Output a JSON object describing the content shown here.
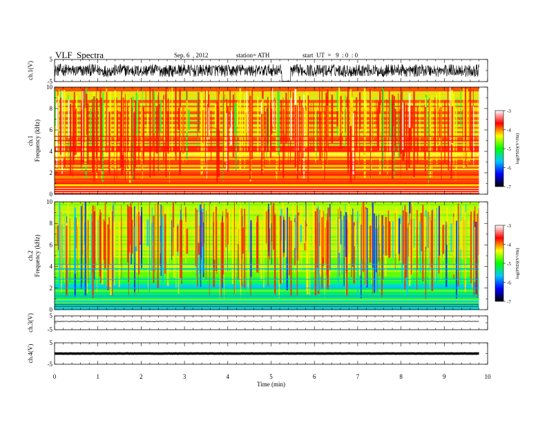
{
  "header": {
    "title": "VLF  Spectra",
    "date": "Sep. 6  , 2012",
    "station": "station= ATH",
    "start": "start  UT  =   9  : 0  : 0"
  },
  "colors": {
    "spectrum": [
      "#000000",
      "#0000ff",
      "#00c8ff",
      "#00ff00",
      "#ffff00",
      "#ff0000",
      "#ffffff"
    ]
  },
  "chart_data": [
    {
      "type": "line",
      "name": "ch1-waveform",
      "ylabel": "ch.1(V)",
      "ylim": [
        -5,
        5
      ],
      "yticks": [
        "5",
        "-5"
      ],
      "xlim": [
        0,
        10
      ],
      "x_min": [
        0,
        9.8
      ],
      "values_min": [
        -3.5,
        3.0
      ],
      "dropout": {
        "x": [
          5.25,
          5.45
        ],
        "value": -5
      }
    },
    {
      "type": "heatmap",
      "name": "ch1-spectrogram",
      "ylabel": "ch.1\nFrequency  (kHz)",
      "ylim": [
        0,
        10
      ],
      "yticks": [
        "0",
        "2",
        "4",
        "6",
        "8",
        "10"
      ],
      "xlim": [
        0,
        9.8
      ],
      "colorbar": {
        "label": "log(PSD)(V²/Hz)",
        "range": [
          -7,
          -3
        ],
        "ticks": [
          "-3",
          "-4",
          "-5",
          "-6",
          "-7"
        ]
      },
      "typical_log_psd": -4.2
    },
    {
      "type": "heatmap",
      "name": "ch2-spectrogram",
      "ylabel": "ch.2\nFrequency  (kHz)",
      "ylim": [
        0,
        10
      ],
      "yticks": [
        "0",
        "2",
        "4",
        "6",
        "8",
        "10"
      ],
      "xlim": [
        0,
        9.8
      ],
      "colorbar": {
        "label": "log(PSD)(V²/Hz)",
        "range": [
          -7,
          -3
        ],
        "ticks": [
          "-3",
          "-4",
          "-5",
          "-6",
          "-7"
        ]
      },
      "typical_log_psd": -5.0
    },
    {
      "type": "line",
      "name": "ch3-waveform",
      "ylabel": "ch.3(V)",
      "ylim": [
        -5,
        5
      ],
      "yticks": [
        "5",
        "-5"
      ],
      "xlim": [
        0,
        9.8
      ],
      "level": 1.0
    },
    {
      "type": "line",
      "name": "ch4-waveform",
      "ylabel": "ch.4(V)",
      "ylim": [
        -5,
        5
      ],
      "yticks": [
        "5",
        "-5"
      ],
      "xlim": [
        0,
        9.8
      ],
      "level": 0.0
    }
  ],
  "x_axis": {
    "label": "Time  (min)",
    "range": [
      0,
      10
    ],
    "ticks": [
      "0",
      "1",
      "2",
      "3",
      "4",
      "5",
      "6",
      "7",
      "8",
      "9",
      "10"
    ]
  }
}
